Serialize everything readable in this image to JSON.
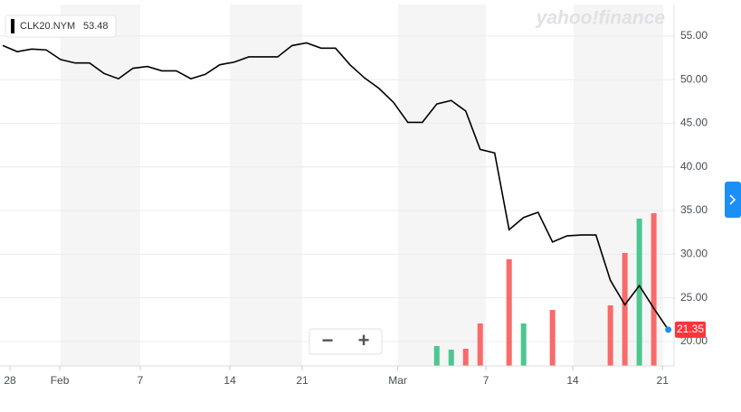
{
  "chart_data": {
    "type": "line",
    "brand": "yahoo!finance",
    "legend_symbol": "CLK20.NYM",
    "legend_value": 53.48,
    "zoom_out": "−",
    "zoom_in": "+",
    "x": [
      0,
      1,
      2,
      3,
      4,
      5,
      6,
      7,
      8,
      9,
      10,
      11,
      12,
      13,
      14,
      15,
      16,
      17,
      18,
      19,
      20,
      21,
      22,
      23,
      24,
      25,
      26,
      27,
      28,
      29,
      30,
      31,
      32,
      33,
      34,
      35,
      36,
      37,
      38,
      39,
      40,
      41,
      42,
      43,
      44,
      45,
      46
    ],
    "xlim": [
      -0.19,
      46.4
    ],
    "xticks": [
      {
        "value": 0.5,
        "label": "28"
      },
      {
        "value": 3.94,
        "label": "Feb"
      },
      {
        "value": 9.5,
        "label": "7"
      },
      {
        "value": 15.7,
        "label": "14"
      },
      {
        "value": 20.7,
        "label": "21"
      },
      {
        "value": 27.3,
        "label": "Mar"
      },
      {
        "value": 33.4,
        "label": "7"
      },
      {
        "value": 39.4,
        "label": "14"
      },
      {
        "value": 45.6,
        "label": "21"
      }
    ],
    "ylim": [
      17.2,
      58.6
    ],
    "yticks": [
      {
        "value": 20,
        "label": "20.00"
      },
      {
        "value": 25,
        "label": "25.00"
      },
      {
        "value": 30,
        "label": "30.00"
      },
      {
        "value": 35,
        "label": "35.00"
      },
      {
        "value": 40,
        "label": "40.00"
      },
      {
        "value": 45,
        "label": "45.00"
      },
      {
        "value": 50,
        "label": "50.00"
      },
      {
        "value": 55,
        "label": "55.00"
      }
    ],
    "y2lim": [
      0,
      100
    ],
    "grid": true,
    "series": [
      {
        "name": "CLK20.NYM",
        "color": "#000000",
        "values": [
          53.9,
          53.2,
          53.5,
          53.4,
          52.3,
          51.9,
          51.9,
          50.7,
          50.1,
          51.3,
          51.5,
          51.0,
          51.0,
          50.1,
          50.6,
          51.7,
          52.0,
          52.6,
          52.6,
          52.6,
          53.9,
          54.2,
          53.6,
          53.6,
          51.7,
          50.2,
          49.0,
          47.4,
          45.1,
          45.1,
          47.2,
          47.6,
          46.4,
          42.0,
          41.6,
          32.8,
          34.2,
          34.8,
          31.4,
          32.1,
          32.2,
          32.2,
          27.0,
          24.2,
          26.4,
          23.8,
          21.35
        ]
      },
      {
        "type": "bar",
        "axis": "y2",
        "x": [
          30,
          31,
          32,
          33,
          35,
          36,
          38,
          42,
          43,
          44,
          45
        ],
        "values": [
          5.5,
          4.5,
          4.75,
          11.75,
          29.5,
          11.75,
          15.5,
          16.75,
          31.25,
          40.75,
          42.25
        ],
        "colors": [
          "#4cc790",
          "#4cc790",
          "#f96a6a",
          "#f96a6a",
          "#f96a6a",
          "#4cc790",
          "#f96a6a",
          "#f96a6a",
          "#f96a6a",
          "#4cc790",
          "#f96a6a"
        ]
      }
    ]
  }
}
